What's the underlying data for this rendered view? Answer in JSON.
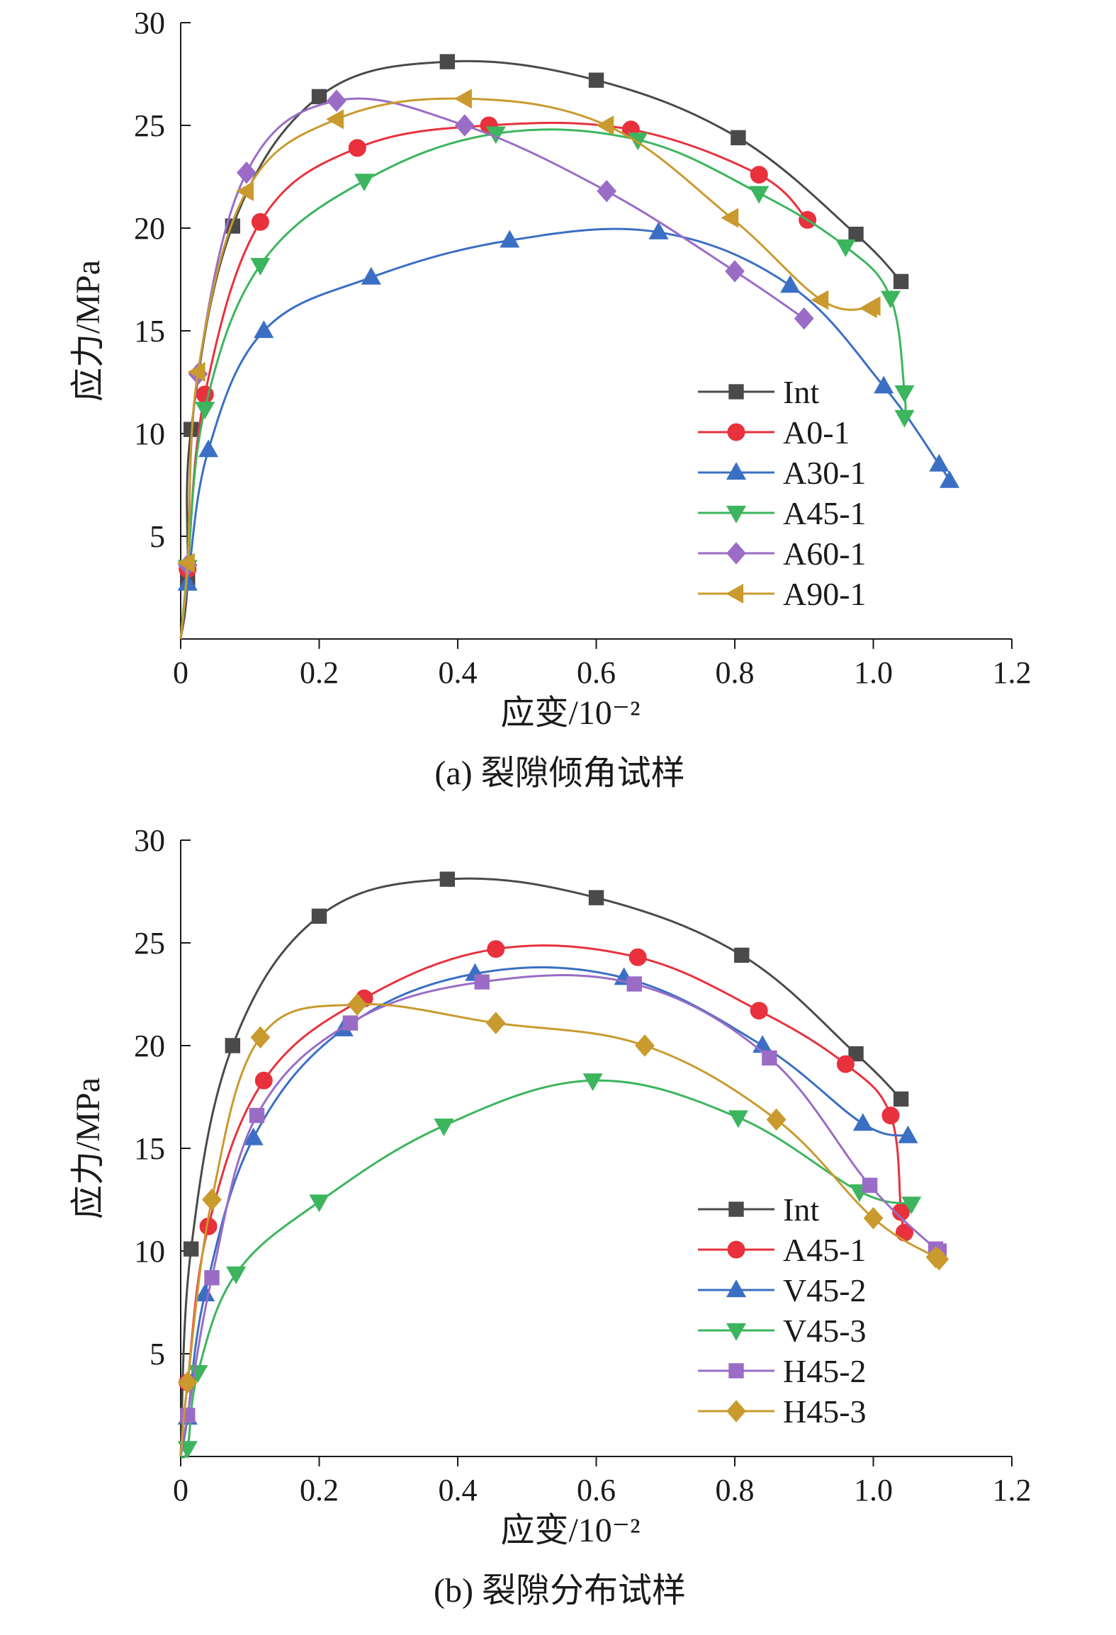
{
  "chart_data": [
    {
      "type": "line",
      "caption": "(a) 裂隙倾角试样",
      "xlabel": "应变/10⁻²",
      "ylabel": "应力/MPa",
      "xlim": [
        0,
        1.2
      ],
      "ylim": [
        0,
        30
      ],
      "xticks": [
        "0",
        "0.2",
        "0.4",
        "0.6",
        "0.8",
        "1.0",
        "1.2"
      ],
      "yticks": [
        "5",
        "10",
        "15",
        "20",
        "25",
        "30"
      ],
      "legend_position": "bottom-right",
      "grid": false,
      "series": [
        {
          "name": "Int",
          "color": "#4a4a4a",
          "marker": "square",
          "x": [
            0,
            0.01,
            0.015,
            0.075,
            0.2,
            0.385,
            0.6,
            0.805,
            0.975,
            1.04
          ],
          "y": [
            0,
            2.8,
            10.2,
            20.1,
            26.4,
            28.1,
            27.2,
            24.4,
            19.7,
            17.4
          ]
        },
        {
          "name": "A0-1",
          "color": "#e8313c",
          "marker": "circle",
          "x": [
            0,
            0.01,
            0.035,
            0.115,
            0.255,
            0.445,
            0.65,
            0.835,
            0.905
          ],
          "y": [
            0,
            3.4,
            11.9,
            20.3,
            23.9,
            25.0,
            24.8,
            22.6,
            20.4
          ]
        },
        {
          "name": "A30-1",
          "color": "#3a6fc4",
          "marker": "triangle-up",
          "x": [
            0,
            0.01,
            0.04,
            0.12,
            0.275,
            0.475,
            0.69,
            0.88,
            1.015,
            1.095,
            1.11
          ],
          "y": [
            0,
            2.7,
            9.2,
            15.0,
            17.6,
            19.4,
            19.8,
            17.2,
            12.3,
            8.5,
            7.7
          ]
        },
        {
          "name": "A45-1",
          "color": "#3cb55e",
          "marker": "triangle-down",
          "x": [
            0,
            0.01,
            0.035,
            0.115,
            0.265,
            0.455,
            0.66,
            0.835,
            0.96,
            1.025,
            1.045,
            1.045
          ],
          "y": [
            0,
            3.5,
            11.2,
            18.2,
            22.3,
            24.6,
            24.3,
            21.7,
            19.1,
            16.6,
            12.0,
            10.8
          ]
        },
        {
          "name": "A60-1",
          "color": "#9a6cc6",
          "marker": "diamond",
          "x": [
            0,
            0.01,
            0.025,
            0.095,
            0.225,
            0.41,
            0.615,
            0.8,
            0.9
          ],
          "y": [
            0,
            3.6,
            12.9,
            22.7,
            26.2,
            25.0,
            21.8,
            17.9,
            15.6
          ]
        },
        {
          "name": "A90-1",
          "color": "#c99a2e",
          "marker": "triangle-left",
          "x": [
            0,
            0.01,
            0.025,
            0.095,
            0.225,
            0.41,
            0.615,
            0.795,
            0.925,
            0.995,
            1.0
          ],
          "y": [
            0,
            3.7,
            13.0,
            21.8,
            25.3,
            26.3,
            25.0,
            20.5,
            16.5,
            16.1,
            16.2
          ]
        }
      ]
    },
    {
      "type": "line",
      "caption": "(b) 裂隙分布试样",
      "xlabel": "应变/10⁻²",
      "ylabel": "应力/MPa",
      "xlim": [
        0,
        1.2
      ],
      "ylim": [
        0,
        30
      ],
      "xticks": [
        "0",
        "0.2",
        "0.4",
        "0.6",
        "0.8",
        "1.0",
        "1.2"
      ],
      "yticks": [
        "5",
        "10",
        "15",
        "20",
        "25",
        "30"
      ],
      "legend_position": "bottom-right",
      "grid": false,
      "series": [
        {
          "name": "Int",
          "color": "#4a4a4a",
          "marker": "square",
          "x": [
            0,
            0.015,
            0.075,
            0.2,
            0.385,
            0.6,
            0.81,
            0.975,
            1.04
          ],
          "y": [
            0,
            10.1,
            20.0,
            26.3,
            28.1,
            27.2,
            24.4,
            19.6,
            17.4
          ]
        },
        {
          "name": "A45-1",
          "color": "#e8313c",
          "marker": "circle",
          "x": [
            0,
            0.01,
            0.04,
            0.12,
            0.265,
            0.455,
            0.66,
            0.835,
            0.96,
            1.025,
            1.04,
            1.045
          ],
          "y": [
            0,
            3.6,
            11.2,
            18.3,
            22.3,
            24.7,
            24.3,
            21.7,
            19.1,
            16.6,
            11.9,
            10.9
          ]
        },
        {
          "name": "V45-2",
          "color": "#3a6fc4",
          "marker": "triangle-up",
          "x": [
            0,
            0.01,
            0.035,
            0.105,
            0.235,
            0.425,
            0.64,
            0.84,
            0.985,
            1.05
          ],
          "y": [
            0,
            1.9,
            7.9,
            15.5,
            20.8,
            23.5,
            23.3,
            20.0,
            16.2,
            15.6
          ]
        },
        {
          "name": "V45-3",
          "color": "#3cb55e",
          "marker": "triangle-down",
          "x": [
            0,
            0.01,
            0.025,
            0.08,
            0.2,
            0.38,
            0.595,
            0.805,
            0.98,
            1.055
          ],
          "y": [
            0,
            0.4,
            4.1,
            8.9,
            12.4,
            16.1,
            18.3,
            16.5,
            12.9,
            12.3
          ]
        },
        {
          "name": "H45-2",
          "color": "#9a6cc6",
          "marker": "square",
          "x": [
            0,
            0.01,
            0.045,
            0.11,
            0.245,
            0.435,
            0.655,
            0.85,
            0.995,
            1.09,
            1.095
          ],
          "y": [
            0,
            2.0,
            8.7,
            16.6,
            21.1,
            23.1,
            23.0,
            19.4,
            13.2,
            10.1,
            10.0
          ]
        },
        {
          "name": "H45-3",
          "color": "#c99a2e",
          "marker": "diamond",
          "x": [
            0,
            0.01,
            0.045,
            0.115,
            0.255,
            0.455,
            0.67,
            0.86,
            1.0,
            1.09,
            1.095
          ],
          "y": [
            0,
            3.6,
            12.5,
            20.4,
            22.0,
            21.1,
            20.0,
            16.4,
            11.6,
            9.7,
            9.6
          ]
        }
      ]
    }
  ]
}
